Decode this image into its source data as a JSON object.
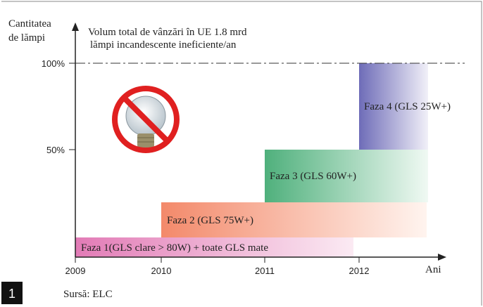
{
  "y_axis": {
    "label_lines": [
      "Cantitatea",
      "de lămpi"
    ],
    "ticks": [
      "100%",
      "50%"
    ]
  },
  "x_axis": {
    "ticks": [
      "2009",
      "2010",
      "2011",
      "2012"
    ],
    "label": "Ani"
  },
  "headline": [
    "Volum total de vânzări în UE 1.8 mrd",
    "lămpi incandescente ineficiente/an"
  ],
  "phases": [
    "Faza 1(GLS clare > 80W) + toate GLS mate",
    "Faza 2 (GLS 75W+)",
    "Faza 3 (GLS 60W+)",
    "Faza 4 (GLS 25W+)"
  ],
  "footer": {
    "number": "1",
    "source": "Sursă: ELC"
  }
}
